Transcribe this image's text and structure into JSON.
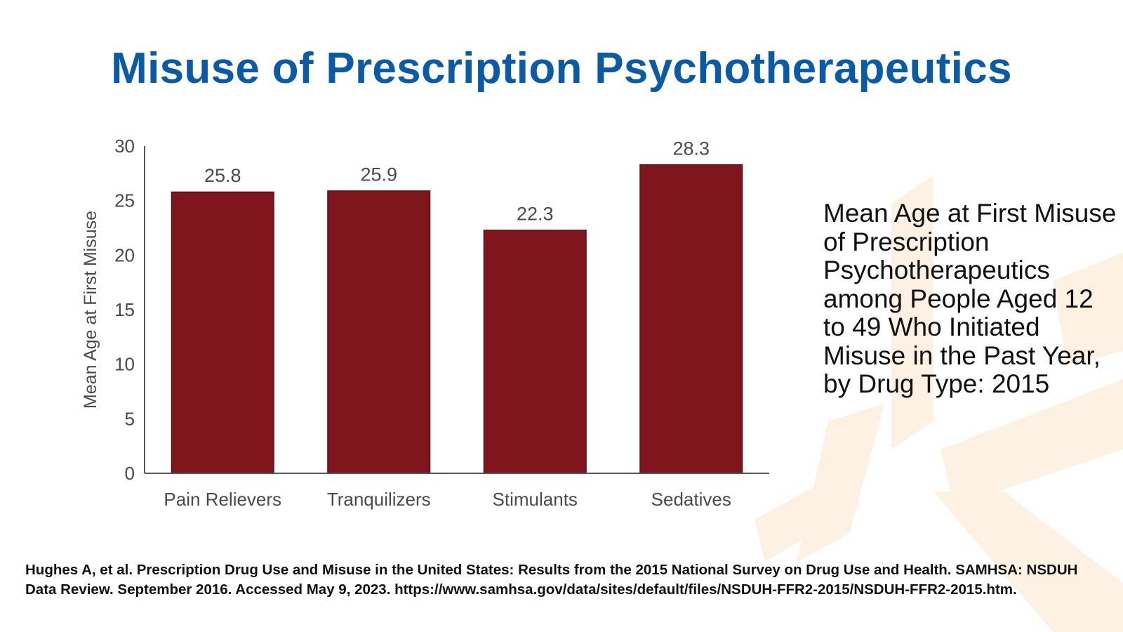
{
  "slide": {
    "title": "Misuse of Prescription Psychotherapeutics",
    "caption": "Mean Age at First Misuse of Prescription Psychotherapeutics among People Aged 12 to 49 Who Initiated Misuse in the Past Year, by Drug Type: 2015",
    "source": "Hughes A, et al. Prescription Drug Use and Misuse in the United States: Results from the 2015 National Survey on Drug Use and Health. SAMHSA: NSDUH Data Review. September 2016. Accessed May 9, 2023. https://www.samhsa.gov/data/sites/default/files/NSDUH-FFR2-2015/NSDUH-FFR2-2015.htm."
  },
  "colors": {
    "title": "#0a5aa5",
    "bar": "#7f161d",
    "axis": "#555555",
    "watermark": "#fdf1e3"
  },
  "chart_data": {
    "type": "bar",
    "title": "",
    "xlabel": "",
    "ylabel": "Mean Age at First Misuse",
    "categories": [
      "Pain Relievers",
      "Tranquilizers",
      "Stimulants",
      "Sedatives"
    ],
    "values": [
      25.8,
      25.9,
      22.3,
      28.3
    ],
    "value_labels": [
      "25.8",
      "25.9",
      "22.3",
      "28.3"
    ],
    "ylim": [
      0,
      30
    ],
    "yticks": [
      0,
      5,
      10,
      15,
      20,
      25,
      30
    ],
    "grid": false,
    "legend": "none"
  }
}
